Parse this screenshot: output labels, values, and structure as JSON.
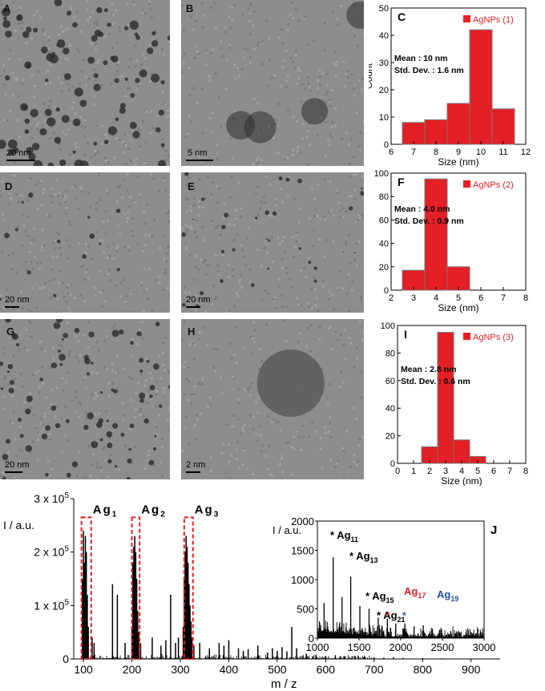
{
  "tem_panels": [
    {
      "letter": "A",
      "scale": "20 nm"
    },
    {
      "letter": "B",
      "scale": "5 nm"
    },
    {
      "letter": "D",
      "scale": "20 nm"
    },
    {
      "letter": "E",
      "scale": "20 nm"
    },
    {
      "letter": "G",
      "scale": "20 nm"
    },
    {
      "letter": "H",
      "scale": "2 nm"
    }
  ],
  "chart_data": [
    {
      "type": "bar",
      "panel": "C",
      "legend": "AgNPs (1)",
      "stats": [
        "Mean : 10 nm",
        "Std. Dev. : 1.6 nm"
      ],
      "xlabel": "Size (nm)",
      "ylabel": "Count",
      "xlim": [
        6,
        12
      ],
      "ylim": [
        0,
        50
      ],
      "xticks": [
        "6",
        "7",
        "8",
        "9",
        "10",
        "11",
        "12"
      ],
      "yticks": [
        "0",
        "10",
        "20",
        "30",
        "40",
        "50"
      ],
      "x": [
        7,
        8,
        9,
        10,
        11
      ],
      "values": [
        8,
        9,
        15,
        42,
        13
      ],
      "color": "#e41f26"
    },
    {
      "type": "bar",
      "panel": "F",
      "legend": "AgNPs (2)",
      "stats": [
        "Mean : 4.0 nm",
        "Std. Dev. : 0.9 nm"
      ],
      "xlabel": "Size (nm)",
      "ylabel": "",
      "xlim": [
        2,
        8
      ],
      "ylim": [
        0,
        100
      ],
      "xticks": [
        "2",
        "3",
        "4",
        "5",
        "6",
        "7",
        "8"
      ],
      "yticks": [
        "0",
        "20",
        "40",
        "60",
        "80",
        "100"
      ],
      "x": [
        3,
        4,
        5
      ],
      "values": [
        17,
        95,
        20
      ],
      "color": "#e41f26"
    },
    {
      "type": "bar",
      "panel": "I",
      "legend": "AgNPs (3)",
      "stats": [
        "Mean : 2.8 nm",
        "Std. Dev. : 0.6 nm"
      ],
      "xlabel": "Size (nm)",
      "ylabel": "",
      "xlim": [
        0,
        8
      ],
      "ylim": [
        0,
        100
      ],
      "xticks": [
        "0",
        "1",
        "2",
        "3",
        "4",
        "5",
        "6",
        "7",
        "8"
      ],
      "yticks": [
        "0",
        "20",
        "40",
        "60",
        "80",
        "100"
      ],
      "x": [
        2,
        3,
        4,
        5
      ],
      "values": [
        12,
        95,
        17,
        5
      ],
      "color": "#e41f26"
    },
    {
      "type": "line",
      "panel": "J",
      "xlabel": "m / z",
      "ylabel": "I / a.u.",
      "xlim": [
        80,
        960
      ],
      "ylim": [
        0,
        300000
      ],
      "xticks": [
        "100",
        "200",
        "300",
        "400",
        "500",
        "600",
        "700",
        "800",
        "900"
      ],
      "yticks": [
        "0",
        "1 x 10",
        "2 x 10",
        "3 x 10"
      ],
      "ytick_exp": "5",
      "peaks": {
        "x": [
          98,
          100,
          102,
          104,
          106,
          108,
          110,
          118,
          122,
          160,
          170,
          186,
          200,
          202,
          204,
          206,
          208,
          210,
          212,
          214,
          218,
          242,
          260,
          270,
          280,
          290,
          296,
          306,
          308,
          310,
          312,
          314,
          316,
          318,
          320,
          322,
          324,
          328,
          340,
          360,
          380,
          390,
          400,
          420,
          430,
          440,
          460,
          480,
          490,
          500,
          510,
          520,
          530,
          540,
          560,
          580,
          600,
          620,
          640,
          660,
          680,
          700,
          720,
          740,
          760,
          800,
          840,
          880,
          920,
          950
        ],
        "y": [
          150000,
          240000,
          180000,
          230000,
          200000,
          120000,
          60000,
          40000,
          30000,
          140000,
          120000,
          30000,
          60000,
          180000,
          210000,
          230000,
          200000,
          150000,
          90000,
          50000,
          30000,
          40000,
          25000,
          35000,
          120000,
          30000,
          40000,
          60000,
          150000,
          200000,
          230000,
          210000,
          180000,
          140000,
          100000,
          70000,
          40000,
          25000,
          30000,
          20000,
          30000,
          25000,
          35000,
          20000,
          15000,
          18000,
          25000,
          12000,
          20000,
          15000,
          22000,
          14000,
          60000,
          20000,
          10000,
          8000,
          6000,
          7000,
          5000,
          6000,
          4000,
          3000,
          2500,
          3000,
          2000,
          1500,
          1200,
          1000,
          800,
          600
        ]
      },
      "boxes": [
        {
          "label": "Ag",
          "sub": "1",
          "x_from": 96,
          "x_to": 116
        },
        {
          "label": "Ag",
          "sub": "2",
          "x_from": 200,
          "x_to": 216
        },
        {
          "label": "Ag",
          "sub": "3",
          "x_from": 308,
          "x_to": 326
        }
      ],
      "panel_letter": "J"
    },
    {
      "type": "line",
      "panel": "J-inset",
      "ylabel": "I / a.u.",
      "xlim": [
        1000,
        3000
      ],
      "ylim": [
        0,
        2000
      ],
      "xticks": [
        "1000",
        "1500",
        "2000",
        "2500",
        "3000"
      ],
      "yticks": [
        "0",
        "500",
        "1000",
        "1500",
        "2000"
      ],
      "peaks": {
        "x": [
          1080,
          1190,
          1296,
          1400,
          1510,
          1620,
          1730,
          1840,
          1940,
          2050,
          2160,
          2270,
          2380,
          2490,
          2600,
          2700,
          2810,
          2900
        ],
        "y": [
          600,
          1380,
          700,
          1050,
          550,
          500,
          350,
          330,
          250,
          250,
          200,
          220,
          160,
          150,
          120,
          110,
          90,
          80
        ]
      },
      "annotations": [
        {
          "star": "*",
          "label": "Ag",
          "sub": "11",
          "color": "#000000"
        },
        {
          "star": "*",
          "label": "Ag",
          "sub": "13",
          "color": "#000000"
        },
        {
          "star": "*",
          "label": "Ag",
          "sub": "15",
          "color": "#000000"
        },
        {
          "star": "",
          "label": "Ag",
          "sub": "17",
          "color": "#e41f26"
        },
        {
          "star": "",
          "label": "Ag",
          "sub": "19",
          "color": "#2a4fa0"
        },
        {
          "star": "*",
          "label": "Ag",
          "sub": "21",
          "color": "#000000"
        }
      ]
    }
  ]
}
